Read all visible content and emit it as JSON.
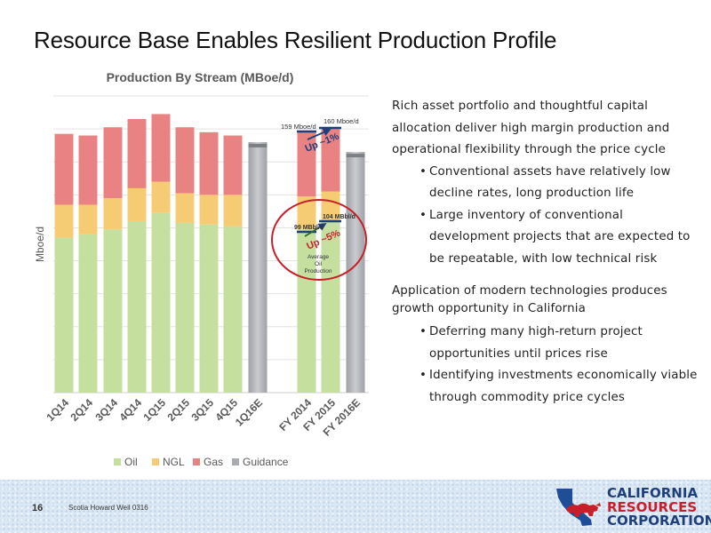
{
  "slide": {
    "title": "Resource Base Enables Resilient Production Profile",
    "page_number": "16",
    "footer_note": "Scotia Howard Weil 0316"
  },
  "logo": {
    "line1": "CALIFORNIA",
    "line2": "RESOURCES",
    "line3": "CORPORATION"
  },
  "text_panel": {
    "para1": "Rich asset portfolio and thoughtful capital allocation deliver high margin production and operational flexibility through the price cycle",
    "bullets1": [
      "Conventional assets have relatively low decline rates, long production life",
      "Large inventory of conventional development projects that are expected to be repeatable, with low technical risk"
    ],
    "para2": "Application of modern technologies produces growth opportunity in California",
    "bullets2": [
      "Deferring many high-return project opportunities until prices rise",
      "Identifying investments economically viable through commodity price cycles"
    ]
  },
  "chart_data": {
    "type": "bar",
    "stacked": true,
    "title": "Production By Stream (MBoe/d)",
    "ylabel": "Mboe/d",
    "xlabel": "",
    "ylim": [
      0,
      180
    ],
    "grid": true,
    "legend_position": "bottom",
    "categories": [
      "1Q14",
      "2Q14",
      "3Q14",
      "4Q14",
      "1Q15",
      "2Q15",
      "3Q15",
      "4Q15",
      "1Q16E",
      "FY 2014",
      "FY 2015",
      "FY 2016E"
    ],
    "series": [
      {
        "name": "Oil",
        "color": "#c5df9f",
        "values": [
          94,
          96,
          99,
          104,
          109,
          103,
          102,
          101,
          0,
          99,
          104,
          0
        ]
      },
      {
        "name": "NGL",
        "color": "#f5cc74",
        "values": [
          20,
          18,
          19,
          20,
          19,
          18,
          18,
          19,
          0,
          20,
          18,
          0
        ]
      },
      {
        "name": "Gas",
        "color": "#e98282",
        "values": [
          43,
          42,
          43,
          42,
          41,
          40,
          38,
          36,
          0,
          40,
          38,
          0
        ]
      },
      {
        "name": "Guidance",
        "color": "#b3b6ba",
        "values": [
          0,
          0,
          0,
          0,
          0,
          0,
          0,
          0,
          152,
          0,
          0,
          146
        ]
      }
    ],
    "annotations": {
      "top_left": "159 Mboe/d",
      "top_right": "160 Mboe/d",
      "top_change": "Up ~1%",
      "oil_left": "99 MBbl/d",
      "oil_right": "104 MBbl/d",
      "oil_change": "Up ~5%",
      "oil_note": [
        "Average",
        "Oil",
        "Production"
      ]
    }
  }
}
